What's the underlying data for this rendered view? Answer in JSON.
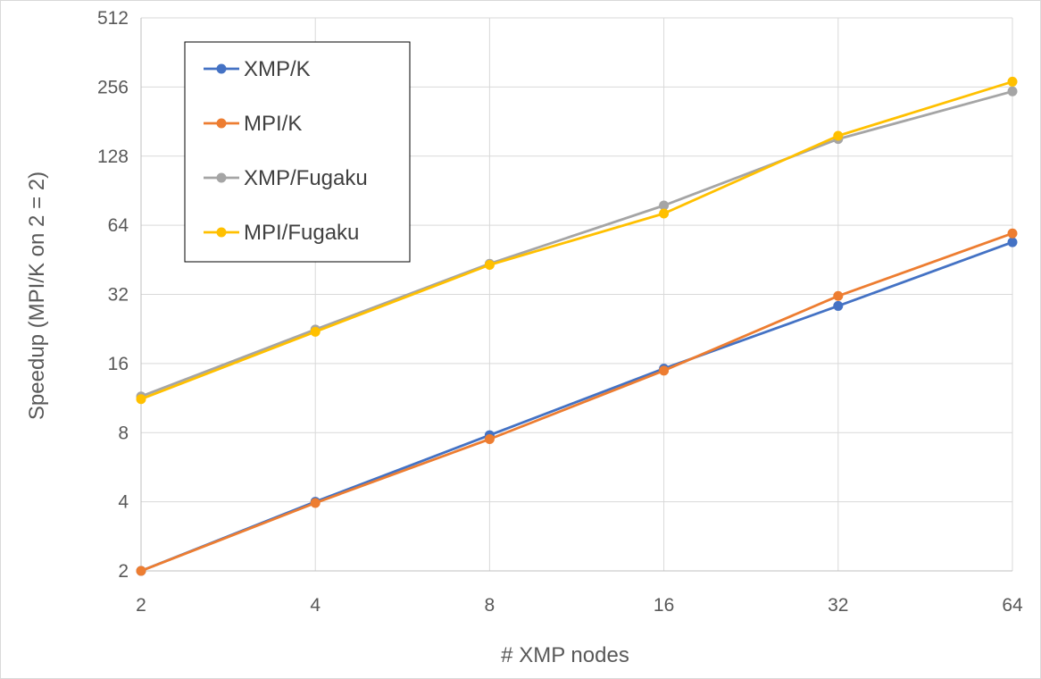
{
  "chart_data": {
    "type": "line",
    "title": "",
    "xlabel": "# XMP nodes",
    "ylabel": "Speedup (MPI/K on 2 = 2)",
    "x_scale": "log2",
    "y_scale": "log2",
    "x": [
      2,
      4,
      8,
      16,
      32,
      64
    ],
    "x_tick_labels": [
      "2",
      "4",
      "8",
      "16",
      "32",
      "64"
    ],
    "y_ticks": [
      2,
      4,
      8,
      16,
      32,
      64,
      128,
      256,
      512
    ],
    "y_tick_labels": [
      "2",
      "4",
      "8",
      "16",
      "32",
      "64",
      "128",
      "256",
      "512"
    ],
    "xlim": [
      2,
      64
    ],
    "ylim": [
      2,
      512
    ],
    "grid": true,
    "legend_position": "top-left",
    "series": [
      {
        "name": "XMP/K",
        "color": "#4472C4",
        "values": [
          2,
          4,
          7.8,
          15.2,
          28.5,
          54
        ]
      },
      {
        "name": "MPI/K",
        "color": "#ED7D31",
        "values": [
          2,
          3.95,
          7.5,
          14.9,
          31.5,
          59
        ]
      },
      {
        "name": "XMP/Fugaku",
        "color": "#A5A5A5",
        "values": [
          11.5,
          22.5,
          43.5,
          78,
          152,
          245
        ]
      },
      {
        "name": "MPI/Fugaku",
        "color": "#FFC000",
        "values": [
          11.2,
          22,
          43,
          72,
          157,
          270
        ]
      }
    ]
  }
}
